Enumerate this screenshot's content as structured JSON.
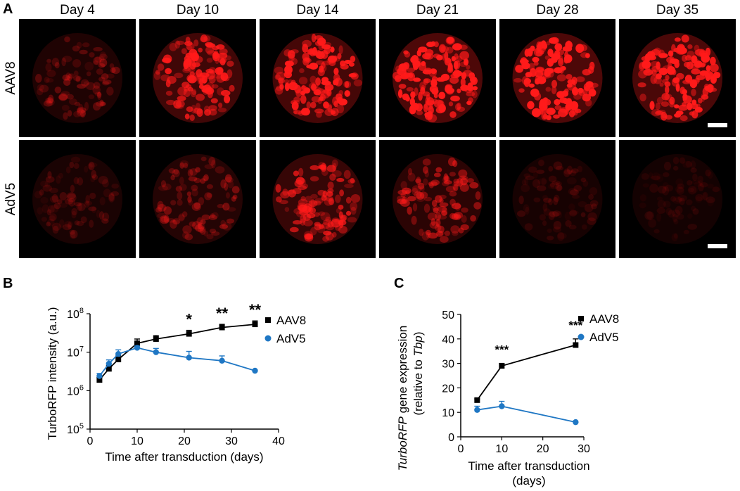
{
  "panels": {
    "a": "A",
    "b": "B",
    "c": "C"
  },
  "panel_a": {
    "days": [
      "Day 4",
      "Day 10",
      "Day 14",
      "Day 21",
      "Day 28",
      "Day 35"
    ],
    "rows": [
      "AAV8",
      "AdV5"
    ],
    "intensity": {
      "AAV8": [
        0.25,
        0.75,
        0.85,
        0.95,
        0.95,
        0.9
      ],
      "AdV5": [
        0.15,
        0.3,
        0.6,
        0.45,
        0.12,
        0.08
      ]
    },
    "colors": {
      "tile_bg": "#000000",
      "cells": "#ff1a1a",
      "scalebar": "#ffffff"
    }
  },
  "chart_data": [
    {
      "type": "line",
      "panel": "B",
      "ylabel": "TurboRFP intensity (a.u.)",
      "xlabel": "Time after transduction (days)",
      "xlim": [
        0,
        40
      ],
      "xticks": [
        0,
        10,
        20,
        30,
        40
      ],
      "yscale": "log",
      "ylim": [
        100000,
        100000000
      ],
      "yticks": [
        {
          "value": 100000,
          "base": "10",
          "exp": "5"
        },
        {
          "value": 1000000,
          "base": "10",
          "exp": "6"
        },
        {
          "value": 10000000,
          "base": "10",
          "exp": "7"
        },
        {
          "value": 100000000,
          "base": "10",
          "exp": "8"
        }
      ],
      "legend": "top-right",
      "series": [
        {
          "name": "AAV8",
          "color": "#000000",
          "marker": "square",
          "x": [
            2,
            4,
            6,
            10,
            14,
            21,
            28,
            35
          ],
          "y": [
            1900000,
            3700000,
            6500000,
            17000000,
            22000000,
            30000000,
            44000000,
            53000000
          ],
          "err_upper": [
            2200000,
            4500000,
            8000000,
            22000000,
            27000000,
            37000000,
            53000000,
            65000000
          ]
        },
        {
          "name": "AdV5",
          "color": "#1f77c4",
          "marker": "circle",
          "x": [
            2,
            4,
            6,
            10,
            14,
            21,
            28,
            35
          ],
          "y": [
            2400000,
            5000000,
            9000000,
            13000000,
            10000000,
            7200000,
            6000000,
            3300000
          ],
          "err_upper": [
            2800000,
            6300000,
            11500000,
            14500000,
            12500000,
            10500000,
            8000000,
            3300000
          ]
        }
      ],
      "annotations": [
        {
          "x": 21,
          "text": "*"
        },
        {
          "x": 28,
          "text": "**"
        },
        {
          "x": 35,
          "text": "**"
        }
      ]
    },
    {
      "type": "line",
      "panel": "C",
      "ylabel_italic": "TurboRFP",
      "ylabel_rest": " gene expression",
      "ylabel2_prefix": "(relative to ",
      "ylabel2_italic": "Tbp",
      "ylabel2_suffix": ")",
      "xlabel": "Time after transduction",
      "xlabel2": "(days)",
      "xlim": [
        0,
        30
      ],
      "xticks": [
        0,
        10,
        20,
        30
      ],
      "ylim": [
        0,
        50
      ],
      "yticks": [
        0,
        10,
        20,
        30,
        40,
        50
      ],
      "legend": "top-right",
      "series": [
        {
          "name": "AAV8",
          "color": "#000000",
          "marker": "square",
          "x": [
            4,
            10,
            28
          ],
          "y": [
            15,
            29,
            37.5
          ],
          "err_upper": [
            15.5,
            30,
            40
          ]
        },
        {
          "name": "AdV5",
          "color": "#1f77c4",
          "marker": "circle",
          "x": [
            4,
            10,
            28
          ],
          "y": [
            11,
            12.5,
            6
          ],
          "err_upper": [
            12.5,
            14.5,
            6
          ]
        }
      ],
      "annotations": [
        {
          "x": 10,
          "text": "***"
        },
        {
          "x": 28,
          "text": "***"
        }
      ]
    }
  ]
}
